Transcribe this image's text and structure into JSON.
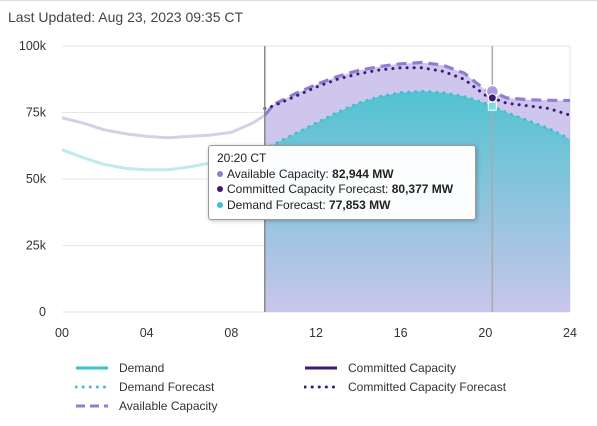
{
  "header": {
    "last_updated": "Last Updated: Aug 23, 2023 09:35 CT"
  },
  "colors": {
    "demand": "#3cc2cc",
    "demand_fill": "#9fe3e8",
    "available": "#8f7fd4",
    "available_fill": "#c6bce9",
    "committed": "#3d1a78",
    "history_demand": "#bfeaf0",
    "history_available": "#d9cdea"
  },
  "chart_data": {
    "type": "line",
    "x_ticks": [
      "00",
      "04",
      "08",
      "12",
      "16",
      "20",
      "24"
    ],
    "y_ticks": [
      "0",
      "25k",
      "50k",
      "75k",
      "100k"
    ],
    "xlim": [
      0,
      24
    ],
    "ylim": [
      0,
      100000
    ],
    "now_hour": 9.58,
    "hover_hour": 20.33,
    "series": [
      {
        "name": "Demand",
        "x": [
          0,
          1,
          2,
          3,
          4,
          5,
          6,
          7,
          8,
          9,
          9.58
        ],
        "values": [
          61000,
          58000,
          55500,
          54000,
          53500,
          53500,
          54500,
          56000,
          58000,
          60000,
          61000
        ]
      },
      {
        "name": "Demand Forecast",
        "x": [
          9.58,
          10,
          11,
          12,
          13,
          14,
          15,
          16,
          17,
          18,
          19,
          20,
          21,
          22,
          23,
          24
        ],
        "values": [
          61000,
          63000,
          67000,
          71000,
          75000,
          78500,
          81000,
          82500,
          83000,
          82500,
          81000,
          78500,
          75000,
          72000,
          69000,
          65000
        ]
      },
      {
        "name": "Committed Capacity Forecast",
        "x": [
          9.58,
          10,
          11,
          12,
          13,
          14,
          15,
          16,
          17,
          18,
          19,
          20,
          21,
          22,
          23,
          24
        ],
        "values": [
          76500,
          77500,
          81000,
          84500,
          87500,
          89500,
          91000,
          91800,
          91800,
          90500,
          87500,
          81500,
          78500,
          77500,
          76500,
          74000
        ]
      },
      {
        "name": "Available Capacity",
        "x": [
          0,
          1,
          2,
          3,
          4,
          5,
          6,
          7,
          8,
          9,
          9.58,
          10,
          11,
          12,
          13,
          14,
          15,
          16,
          17,
          18,
          19,
          20,
          20.33,
          21,
          22,
          23,
          24
        ],
        "values": [
          73000,
          71000,
          68500,
          67000,
          66000,
          65500,
          66000,
          66500,
          67500,
          71000,
          74000,
          78000,
          82000,
          85500,
          88500,
          90800,
          92300,
          93300,
          93800,
          92800,
          89800,
          83500,
          82944,
          80500,
          79800,
          79600,
          79500
        ]
      }
    ],
    "tooltip": {
      "time": "20:20 CT",
      "rows": [
        {
          "label": "Available Capacity: ",
          "value": "82,944 MW",
          "color": "#8f7fd4"
        },
        {
          "label": "Committed Capacity Forecast: ",
          "value": "80,377 MW",
          "color": "#3d1a78"
        },
        {
          "label": "Demand Forecast: ",
          "value": "77,853 MW",
          "color": "#3cc2cc"
        }
      ]
    },
    "legend": {
      "placement": "bottom",
      "items": [
        {
          "label": "Demand",
          "style": "solid",
          "color": "#3cc2cc"
        },
        {
          "label": "Committed Capacity",
          "style": "solid",
          "color": "#3d1a78"
        },
        {
          "label": "Demand Forecast",
          "style": "dotted",
          "color": "#3cc2cc"
        },
        {
          "label": "Committed Capacity Forecast",
          "style": "dotted",
          "color": "#3d1a78"
        },
        {
          "label": "Available Capacity",
          "style": "dashed",
          "color": "#8f7fd4"
        }
      ]
    }
  }
}
